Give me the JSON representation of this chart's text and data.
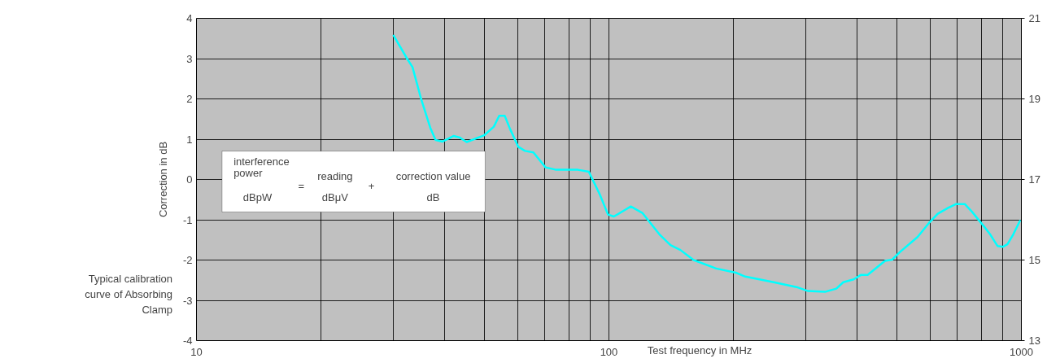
{
  "chart_data": {
    "type": "line",
    "xlabel": "Test frequency in MHz",
    "ylabel": "Correction in dB",
    "log": "x",
    "grid": true,
    "marker": "none",
    "line_style": "solid",
    "xlim": [
      10,
      1000
    ],
    "xticks": [
      10,
      100,
      1000
    ],
    "ylim": [
      -4,
      4
    ],
    "yticks": [
      -4,
      -3,
      -2,
      -1,
      0,
      1,
      2,
      3,
      4
    ],
    "y2lim": [
      13,
      21
    ],
    "y2ticks": [
      13,
      15,
      17,
      19,
      21
    ],
    "x": [
      30.0,
      32.4,
      33.4,
      35.0,
      36.9,
      38.0,
      39.5,
      42.0,
      43.5,
      45.2,
      49.9,
      52.6,
      54.2,
      55.9,
      57.6,
      60.3,
      62.6,
      65.6,
      70.2,
      74.5,
      84.1,
      89.4,
      95.0,
      99.5,
      102.8,
      113,
      120.5,
      132.5,
      141,
      149,
      160.5,
      182,
      204,
      214,
      251,
      285,
      304,
      334,
      356,
      370,
      392,
      408,
      424,
      467,
      486,
      509,
      560,
      597,
      627,
      663,
      695,
      729,
      759,
      815,
      841,
      875,
      903,
      925,
      955,
      994
    ],
    "series": [
      {
        "color": "#00ffff",
        "values": [
          3.59,
          3.0,
          2.79,
          2.02,
          1.28,
          0.98,
          0.94,
          1.08,
          1.04,
          0.93,
          1.1,
          1.31,
          1.58,
          1.58,
          1.25,
          0.81,
          0.71,
          0.67,
          0.3,
          0.24,
          0.24,
          0.19,
          -0.37,
          -0.87,
          -0.92,
          -0.67,
          -0.83,
          -1.36,
          -1.63,
          -1.75,
          -2.0,
          -2.21,
          -2.32,
          -2.41,
          -2.55,
          -2.67,
          -2.77,
          -2.79,
          -2.71,
          -2.55,
          -2.48,
          -2.37,
          -2.37,
          -2.02,
          -1.99,
          -1.79,
          -1.43,
          -1.08,
          -0.85,
          -0.71,
          -0.61,
          -0.61,
          -0.8,
          -1.19,
          -1.37,
          -1.65,
          -1.67,
          -1.61,
          -1.37,
          -1.01
        ]
      }
    ],
    "annotations": [
      "Typical calibration curve of Absorbing Clamp",
      "interference",
      "power",
      "dBpW",
      "=",
      "reading",
      "dBμV",
      "+",
      "correction value",
      "dB"
    ]
  }
}
